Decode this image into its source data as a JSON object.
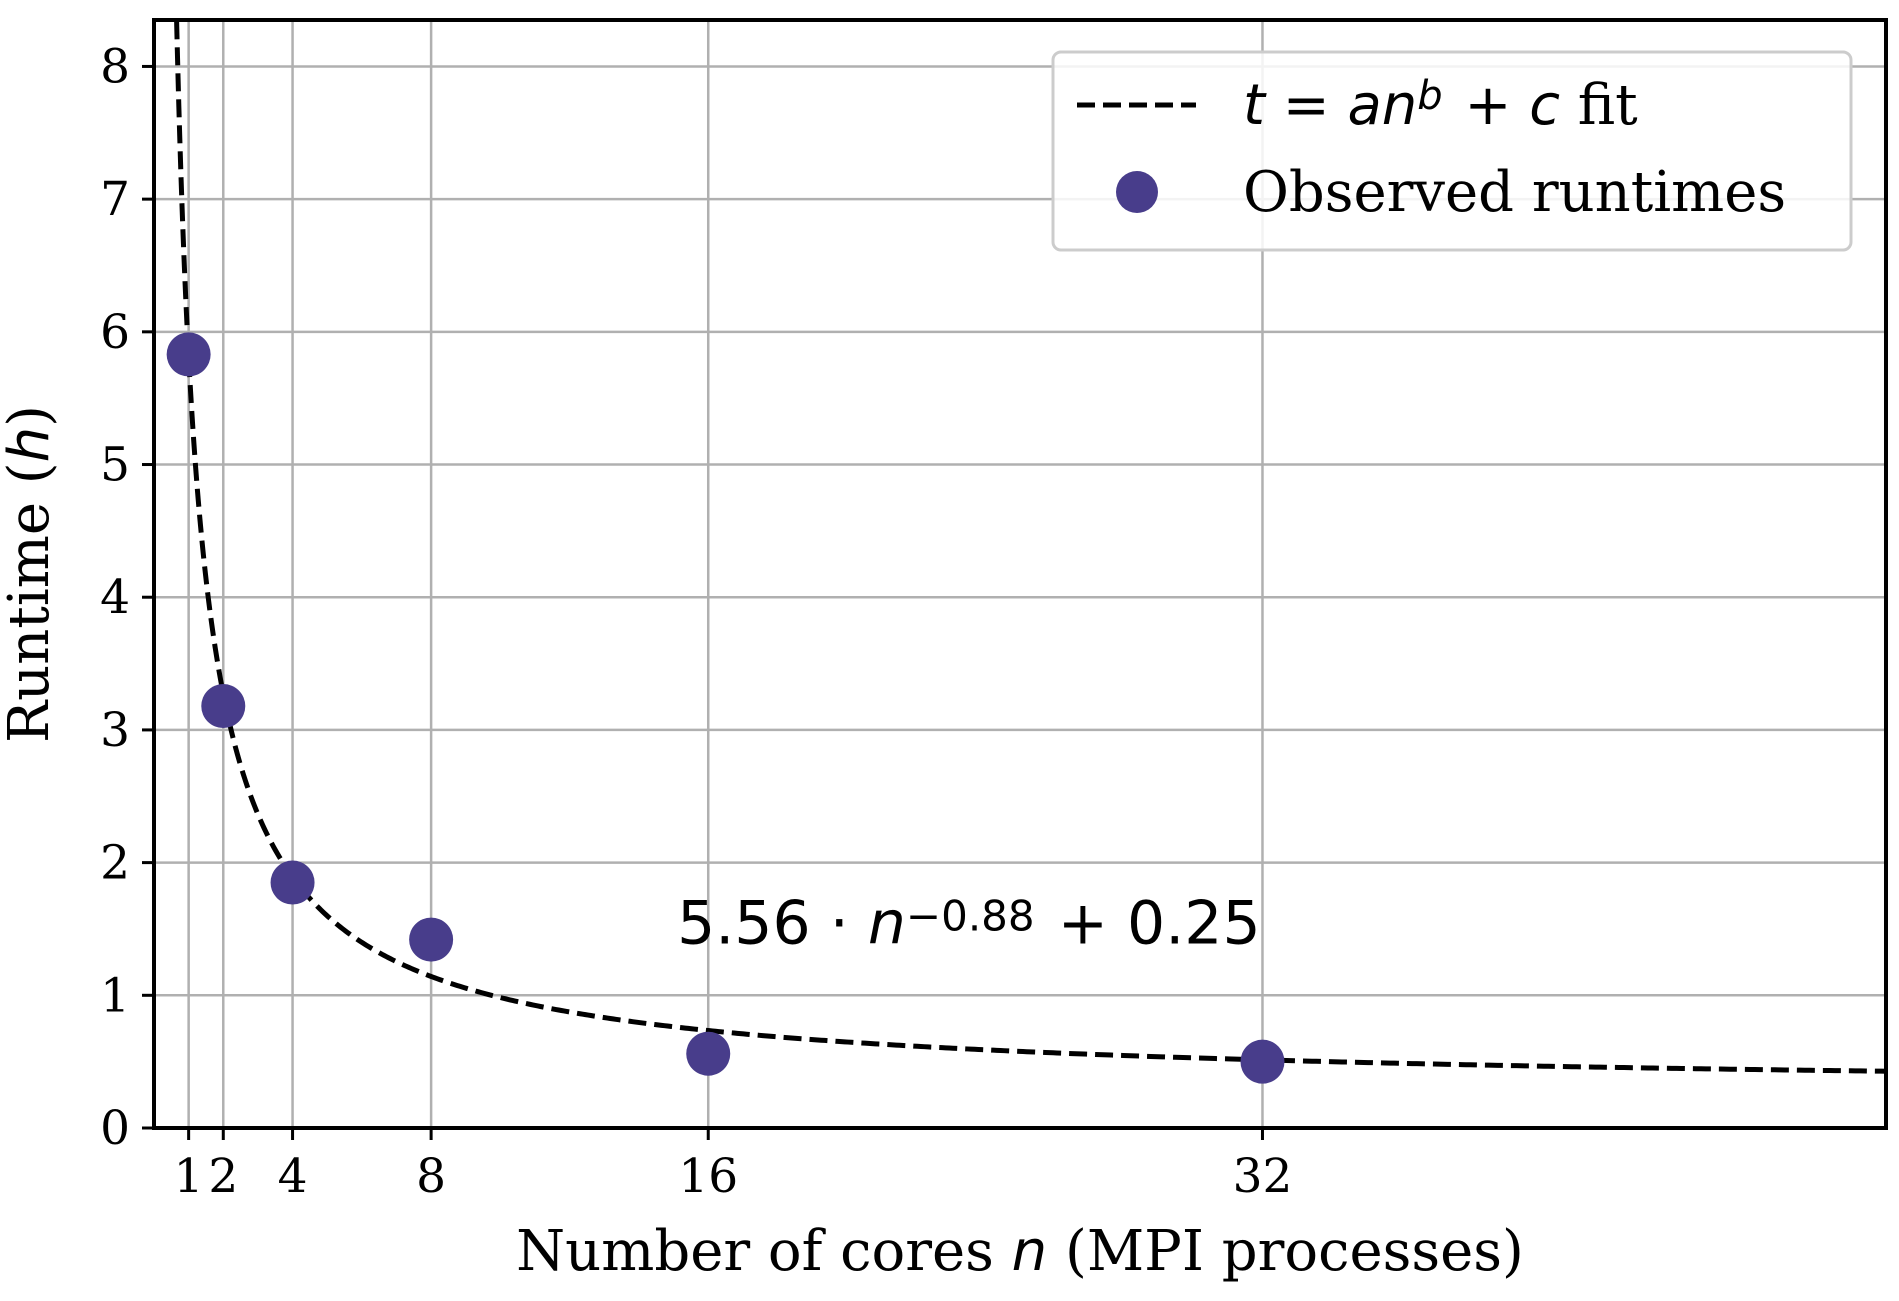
{
  "chart_data": {
    "type": "scatter",
    "xlabel_parts": [
      {
        "text": "Number of cores ",
        "style": "serif"
      },
      {
        "text": "n",
        "style": "math"
      },
      {
        "text": " (MPI processes)",
        "style": "serif"
      }
    ],
    "ylabel_parts": [
      {
        "text": "Runtime (",
        "style": "serif"
      },
      {
        "text": "h",
        "style": "math"
      },
      {
        "text": ")",
        "style": "serif"
      }
    ],
    "xlim": [
      0,
      50
    ],
    "ylim": [
      0,
      8.35
    ],
    "x_ticks": [
      1,
      2,
      4,
      8,
      16,
      32
    ],
    "x_tick_labels": [
      "1",
      "2",
      "4",
      "8",
      "16",
      "32"
    ],
    "y_ticks": [
      0,
      1,
      2,
      3,
      4,
      5,
      6,
      7,
      8
    ],
    "y_tick_labels": [
      "0",
      "1",
      "2",
      "3",
      "4",
      "5",
      "6",
      "7",
      "8"
    ],
    "grid": true,
    "legend_position": "top-right",
    "series": [
      {
        "name": "Observed runtimes",
        "kind": "scatter",
        "color": "#483d8b",
        "x": [
          1,
          2,
          4,
          8,
          16,
          32
        ],
        "y": [
          5.83,
          3.18,
          1.85,
          1.42,
          0.56,
          0.5
        ]
      },
      {
        "kind": "line",
        "style": "dashed",
        "color": "#000000",
        "fit": {
          "a": 5.56,
          "b": -0.88,
          "c": 0.25
        }
      }
    ],
    "legend_fit_label": {
      "math": "t = an",
      "sup": "b",
      "math_tail": " + c",
      "text": " fit"
    },
    "annotation": {
      "text": "5.56 · n",
      "sup": "−0.88",
      "tail": " + 0.25",
      "x": 15.1,
      "y": 1.54
    }
  }
}
